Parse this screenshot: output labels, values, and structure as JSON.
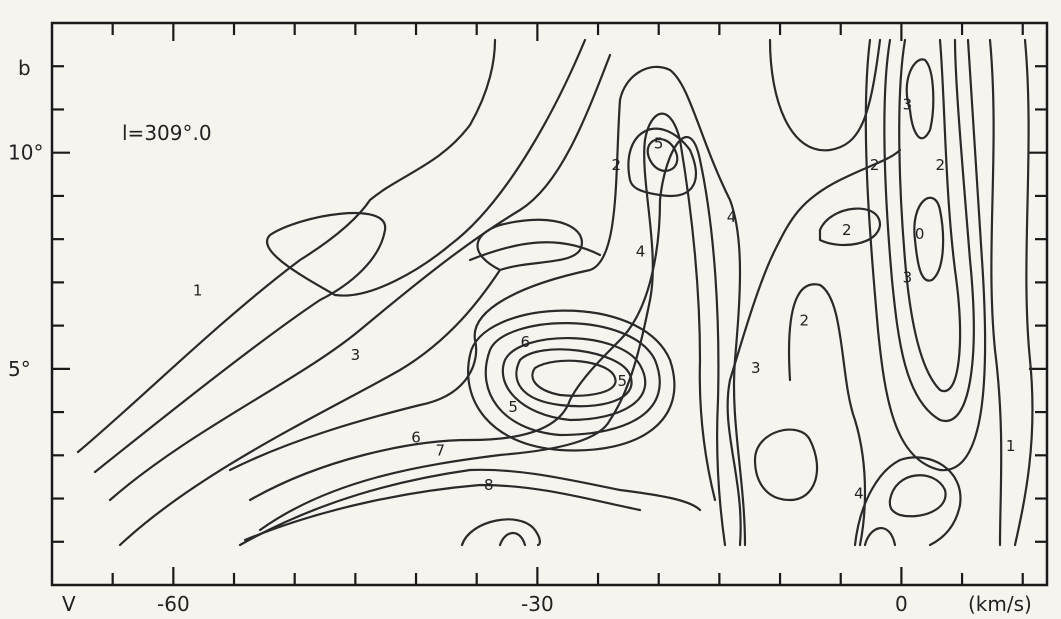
{
  "chart_data": {
    "type": "contour",
    "annotation": "l=309°.0",
    "x_axis": {
      "var_label": "V",
      "unit_label": "(km/s)",
      "range": [
        -70,
        12
      ],
      "ticks": [
        -60,
        -30,
        0
      ],
      "tick_labels": [
        "-60",
        "-30",
        "0"
      ]
    },
    "y_axis": {
      "var_label": "b",
      "range": [
        0,
        13
      ],
      "ticks": [
        5,
        10
      ],
      "tick_labels": [
        "5°",
        "10°"
      ]
    },
    "contour_labels": [
      {
        "text": "1",
        "v": -58,
        "b": 6.7
      },
      {
        "text": "1",
        "v": 9,
        "b": 3.1
      },
      {
        "text": "2",
        "v": -23.5,
        "b": 9.6
      },
      {
        "text": "2",
        "v": -8,
        "b": 6.0
      },
      {
        "text": "2",
        "v": -4.5,
        "b": 8.1
      },
      {
        "text": "2",
        "v": -2.2,
        "b": 9.6
      },
      {
        "text": "2",
        "v": 3.2,
        "b": 9.6
      },
      {
        "text": "3",
        "v": -45,
        "b": 5.2
      },
      {
        "text": "3",
        "v": -12,
        "b": 4.9
      },
      {
        "text": "3",
        "v": 0.5,
        "b": 11.0
      },
      {
        "text": "3",
        "v": 0.5,
        "b": 7.0
      },
      {
        "text": "0",
        "v": 1.5,
        "b": 8.0
      },
      {
        "text": "4",
        "v": -21.5,
        "b": 7.6
      },
      {
        "text": "4",
        "v": -14,
        "b": 8.4
      },
      {
        "text": "4",
        "v": -3.5,
        "b": 2.0
      },
      {
        "text": "5",
        "v": -20,
        "b": 10.1
      },
      {
        "text": "5",
        "v": -32,
        "b": 4.0
      },
      {
        "text": "5",
        "v": -23,
        "b": 4.6
      },
      {
        "text": "6",
        "v": -31,
        "b": 5.5
      },
      {
        "text": "6",
        "v": -40,
        "b": 3.3
      },
      {
        "text": "7",
        "v": -38,
        "b": 3.0
      },
      {
        "text": "8",
        "v": -34,
        "b": 2.2
      }
    ]
  }
}
